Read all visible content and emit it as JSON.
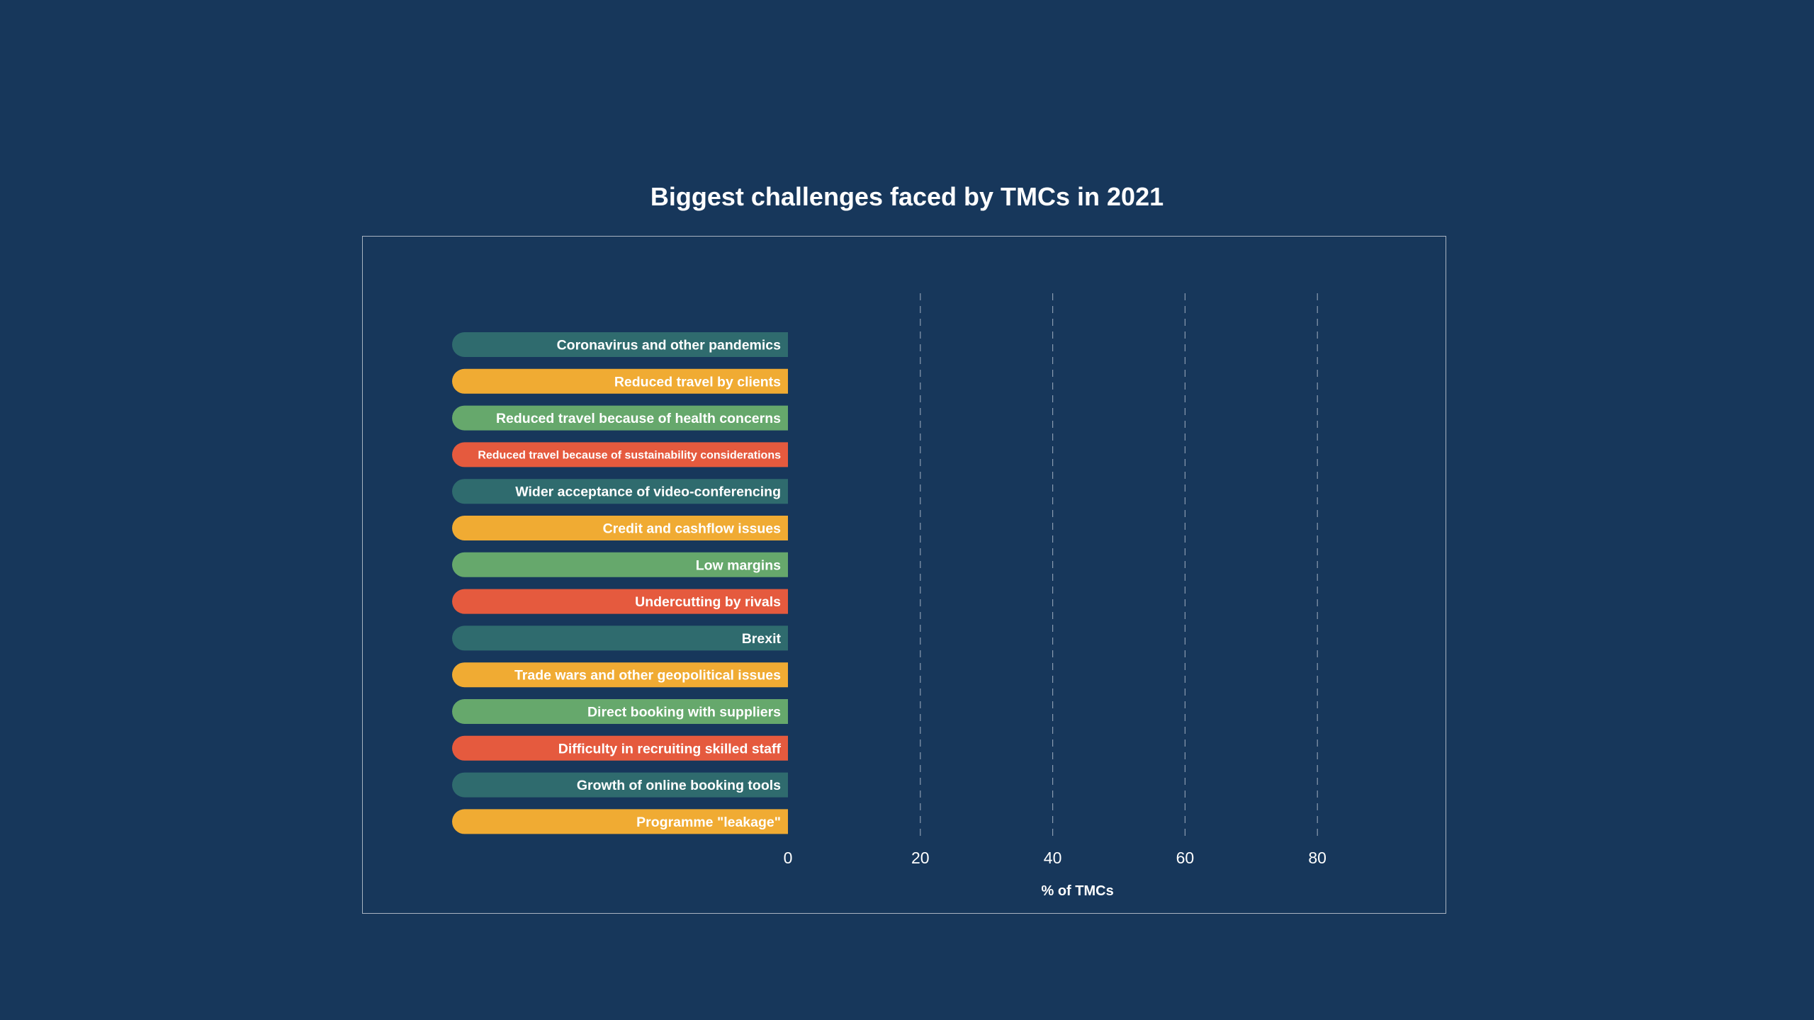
{
  "chart_data": {
    "type": "bar",
    "orientation": "horizontal",
    "title": "Biggest challenges faced by TMCs in 2021",
    "xlabel": "% of TMCs",
    "ylabel": "",
    "xlim": [
      0,
      80
    ],
    "xticks": [
      "0",
      "20",
      "40",
      "60",
      "80"
    ],
    "grid": "vertical dashed",
    "categories": [
      "Coronavirus and other pandemics",
      "Reduced travel by clients",
      "Reduced travel because of health concerns",
      "Reduced travel because of sustainability considerations",
      "Wider acceptance of video-conferencing",
      "Credit and cashflow issues",
      "Low margins",
      "Undercutting by rivals",
      "Brexit",
      "Trade wars and other geopolitical issues",
      "Direct booking with suppliers",
      "Difficulty in recruiting skilled staff",
      "Growth of online booking tools",
      "Programme \"leakage\""
    ],
    "values": [
      0,
      0,
      0,
      0,
      0,
      0,
      0,
      0,
      0,
      0,
      0,
      0,
      0,
      0
    ],
    "colors": [
      "#2f6b6e",
      "#f0ab33",
      "#66a86c",
      "#e55a3e"
    ]
  }
}
